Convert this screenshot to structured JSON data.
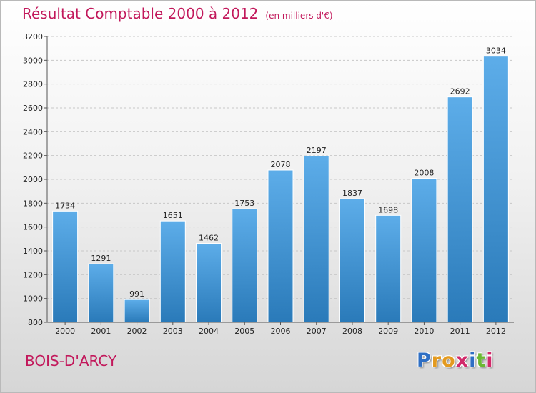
{
  "chart_data": {
    "type": "bar",
    "title": "Résultat Comptable 2000 à 2012",
    "subtitle": "(en milliers d'€)",
    "categories": [
      "2000",
      "2001",
      "2002",
      "2003",
      "2004",
      "2005",
      "2006",
      "2007",
      "2008",
      "2009",
      "2010",
      "2011",
      "2012"
    ],
    "values": [
      1734,
      1291,
      991,
      1651,
      1462,
      1753,
      2078,
      2197,
      1837,
      1698,
      2008,
      2692,
      3034
    ],
    "ylim": [
      800,
      3200
    ],
    "yticks": [
      800,
      1000,
      1200,
      1400,
      1600,
      1800,
      2000,
      2200,
      2400,
      2600,
      2800,
      3000,
      3200
    ],
    "grid": true,
    "xlabel": "",
    "ylabel": "",
    "colors": {
      "bar_light": "#5dade9",
      "bar_dark": "#2a7ab9",
      "title": "#c2185b"
    }
  },
  "footer": {
    "commune": "BOIS-D'ARCY",
    "logo_letters": [
      "P",
      "r",
      "o",
      "x",
      "i",
      "t",
      "i"
    ],
    "logo_colors": [
      "#2f6fc4",
      "#e39a1f",
      "#e39a1f",
      "#d12a6a",
      "#2f6fc4",
      "#6bb833",
      "#d12a6a"
    ]
  }
}
